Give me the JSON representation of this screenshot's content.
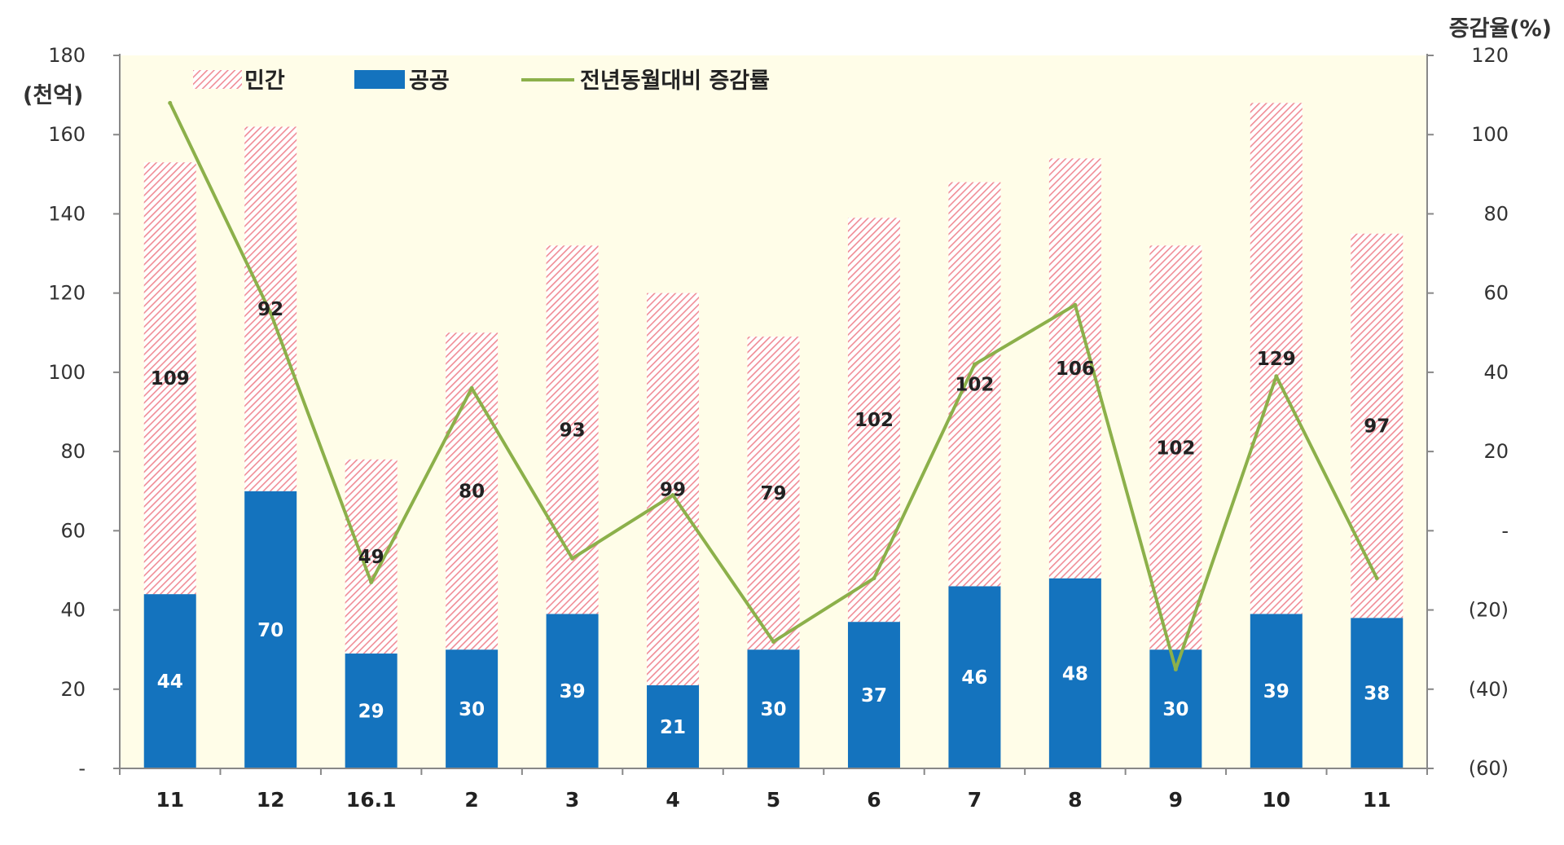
{
  "chart_data": {
    "type": "bar",
    "stacked": true,
    "categories": [
      "11",
      "12",
      "16.1",
      "2",
      "3",
      "4",
      "5",
      "6",
      "7",
      "8",
      "9",
      "10",
      "11"
    ],
    "series": [
      {
        "name": "공공",
        "kind": "bar",
        "color": "#1473BE",
        "values": [
          44,
          70,
          29,
          30,
          39,
          21,
          30,
          37,
          46,
          48,
          30,
          39,
          38
        ]
      },
      {
        "name": "민간",
        "kind": "bar",
        "pattern": "diagonal-hatch",
        "color": "#F08C96",
        "values": [
          109,
          92,
          49,
          80,
          93,
          99,
          79,
          102,
          102,
          106,
          102,
          129,
          97
        ]
      },
      {
        "name": "전년동월대비 증감률",
        "kind": "line",
        "axis": "right",
        "color": "#8CB04A",
        "values": [
          108,
          55,
          -13,
          36,
          -7,
          9,
          -28,
          -12,
          42,
          57,
          -35,
          39,
          -12
        ]
      }
    ],
    "ylabel": "(천억)",
    "ylim": [
      0,
      180
    ],
    "yticks": [
      "-",
      "20",
      "40",
      "60",
      "80",
      "100",
      "120",
      "140",
      "160",
      "180"
    ],
    "y2label": "증감율(%)",
    "y2lim": [
      -60,
      120
    ],
    "y2ticks": [
      "(60)",
      "(40)",
      "(20)",
      "-",
      "20",
      "40",
      "60",
      "80",
      "100",
      "120"
    ],
    "legend_position": "top-left",
    "grid": false,
    "plot_background": "#FFFDE8"
  }
}
